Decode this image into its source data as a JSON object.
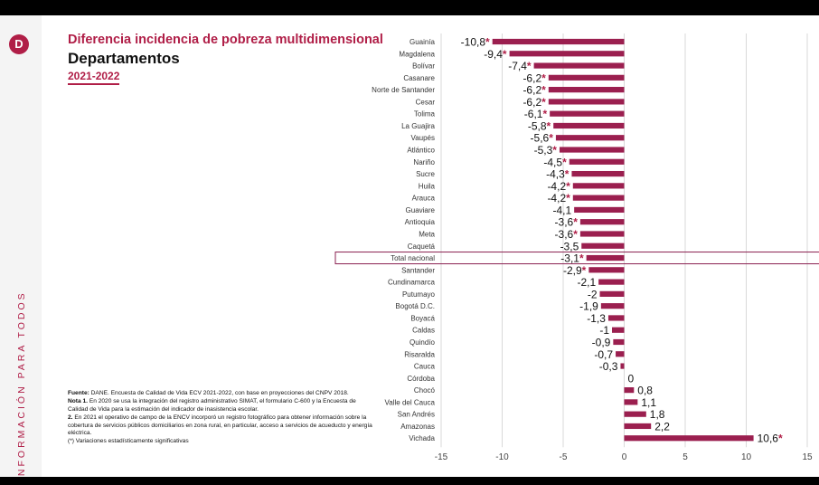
{
  "header": {
    "title": "Diferencia incidencia de pobreza multidimensional",
    "subtitle": "Departamentos",
    "period": "2021-2022"
  },
  "sidebar": {
    "tagline": "INFORMACIÓN PARA TODOS",
    "logo_icon": "dane-logo-icon"
  },
  "notes": {
    "source_label": "Fuente:",
    "source_text": "DANE. Encuesta de Calidad de Vida ECV 2021-2022, con base en proyecciones del CNPV 2018.",
    "note1_label": "Nota 1.",
    "note1_text": "En 2020 se usa la integración del registro administrativo SIMAT, el formulario C-600 y la Encuesta de Calidad de Vida para la estimación del indicador de inasistencia escolar.",
    "note2_label": "2.",
    "note2_text": "En 2021 el operativo de campo de la ENCV incorporó un registro fotográfico para obtener información sobre la cobertura de servicios públicos domiciliarios en zona rural, en particular, acceso a servicios de acueducto y energía eléctrica.",
    "note3_text": "(*) Variaciones estadísticamente significativas"
  },
  "colors": {
    "bar": "#9b1f4f",
    "accent": "#b01e47",
    "grid": "#d9d9d9",
    "highlight_border": "#8b2252"
  },
  "chart_data": {
    "type": "bar",
    "orientation": "horizontal",
    "title": "",
    "xlabel": "",
    "ylabel": "",
    "xlim": [
      -15,
      15
    ],
    "xticks": [
      "-15",
      "-10",
      "-5",
      "0",
      "5",
      "10",
      "15"
    ],
    "grid": true,
    "legend": "none",
    "highlight_category": "Total nacional",
    "categories": [
      "Guainía",
      "Magdalena",
      "Bolívar",
      "Casanare",
      "Norte de Santander",
      "Cesar",
      "Tolima",
      "La Guajira",
      "Vaupés",
      "Atlántico",
      "Nariño",
      "Sucre",
      "Huila",
      "Arauca",
      "Guaviare",
      "Antioquia",
      "Meta",
      "Caquetá",
      "Total nacional",
      "Santander",
      "Cundinamarca",
      "Putumayo",
      "Bogotá D.C.",
      "Boyacá",
      "Caldas",
      "Quindío",
      "Risaralda",
      "Cauca",
      "Córdoba",
      "Chocó",
      "Valle del Cauca",
      "San Andrés",
      "Amazonas",
      "Vichada"
    ],
    "values": [
      -10.8,
      -9.4,
      -7.4,
      -6.2,
      -6.2,
      -6.2,
      -6.1,
      -5.8,
      -5.6,
      -5.3,
      -4.5,
      -4.3,
      -4.2,
      -4.2,
      -4.1,
      -3.6,
      -3.6,
      -3.5,
      -3.1,
      -2.9,
      -2.1,
      -2,
      -1.9,
      -1.3,
      -1,
      -0.9,
      -0.7,
      -0.3,
      0,
      0.8,
      1.1,
      1.8,
      2.2,
      10.6
    ],
    "value_labels": [
      "-10,8",
      "-9,4",
      "-7,4",
      "-6,2",
      "-6,2",
      "-6,2",
      "-6,1",
      "-5,8",
      "-5,6",
      "-5,3",
      "-4,5",
      "-4,3",
      "-4,2",
      "-4,2",
      "-4,1",
      "-3,6",
      "-3,6",
      "-3,5",
      "-3,1",
      "-2,9",
      "-2,1",
      "-2",
      "-1,9",
      "-1,3",
      "-1",
      "-0,9",
      "-0,7",
      "-0,3",
      "0",
      "0,8",
      "1,1",
      "1,8",
      "2,2",
      "10,6"
    ],
    "significant": [
      true,
      true,
      true,
      true,
      true,
      true,
      true,
      true,
      true,
      true,
      true,
      true,
      true,
      true,
      false,
      true,
      true,
      false,
      true,
      true,
      false,
      false,
      false,
      false,
      false,
      false,
      false,
      false,
      false,
      false,
      false,
      false,
      false,
      true
    ],
    "significance_marker": "*"
  }
}
